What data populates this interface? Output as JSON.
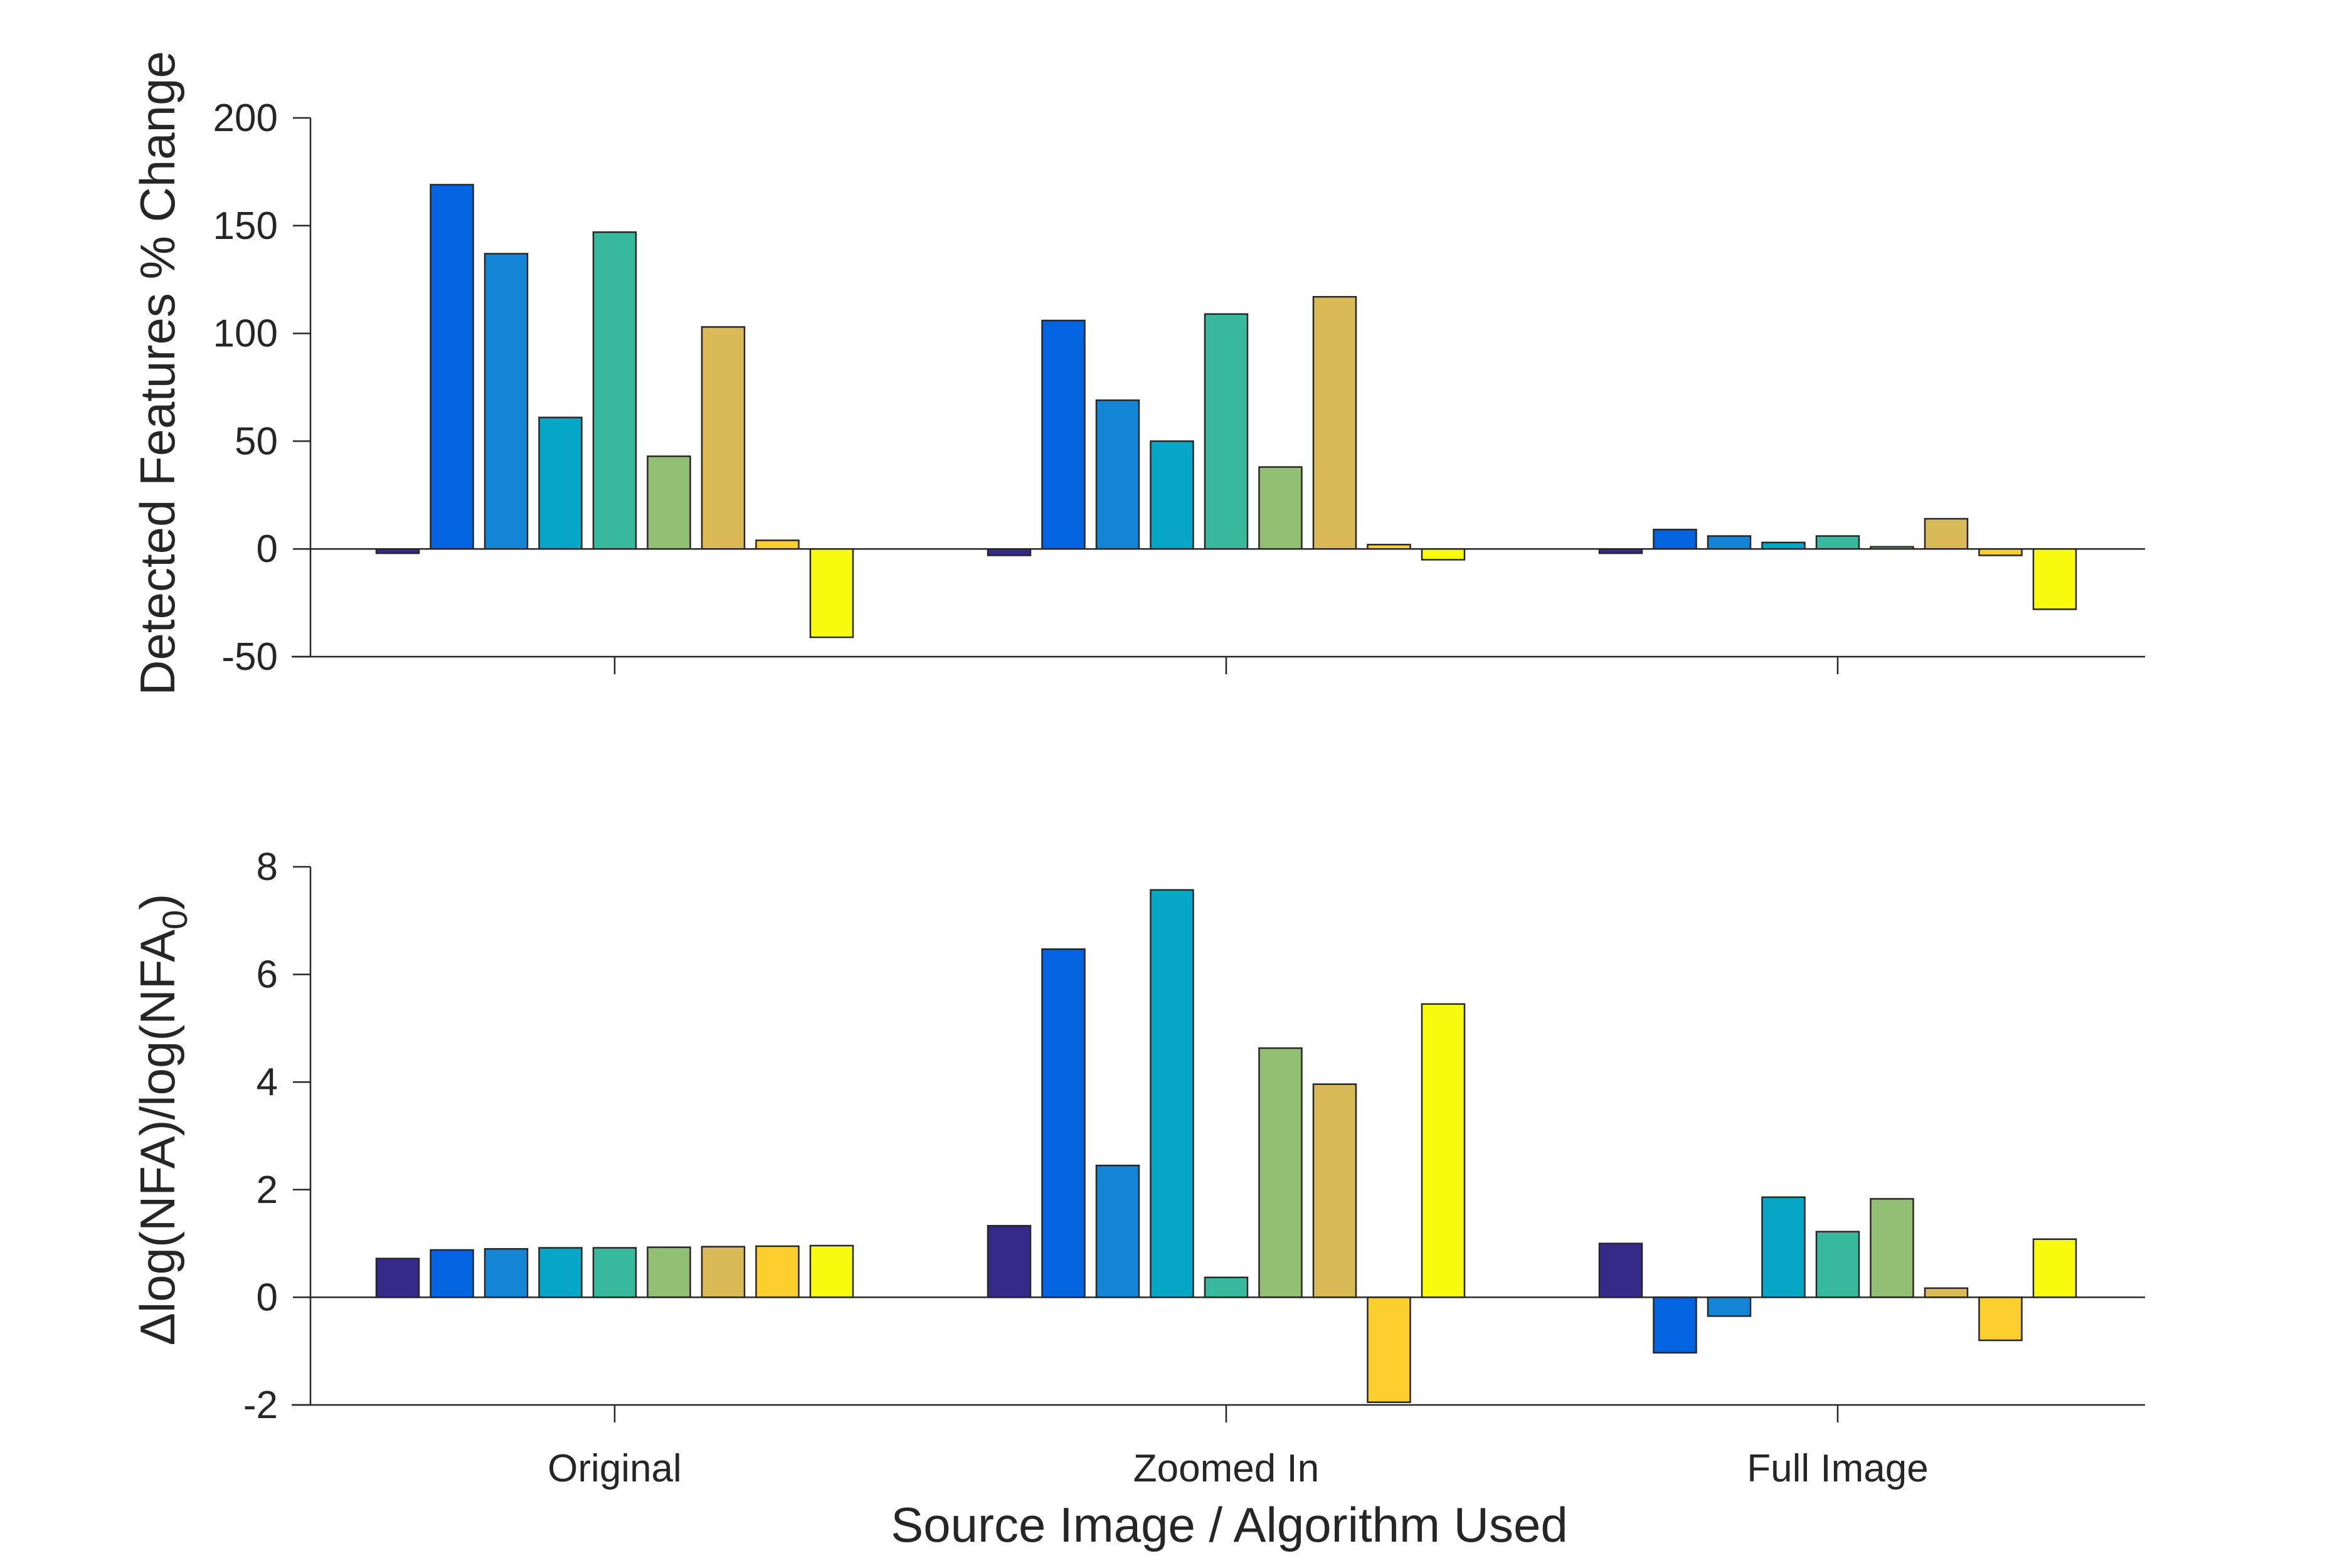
{
  "chart_data": [
    {
      "type": "bar",
      "title": "",
      "xlabel": "",
      "ylabel": "Detected Features % Change",
      "ylim": [
        -50,
        200
      ],
      "yticks": [
        -50,
        0,
        50,
        100,
        150,
        200
      ],
      "grid": false,
      "legend": "none",
      "categories": [
        "Original",
        "Zoomed In",
        "Full Image"
      ],
      "series": [
        {
          "color": "#352a87",
          "values": [
            -2,
            -3,
            -2
          ]
        },
        {
          "color": "#0363e1",
          "values": [
            169,
            106,
            9
          ]
        },
        {
          "color": "#1485d4",
          "values": [
            137,
            69,
            6
          ]
        },
        {
          "color": "#06a7c6",
          "values": [
            61,
            50,
            3
          ]
        },
        {
          "color": "#38b99e",
          "values": [
            147,
            109,
            6
          ]
        },
        {
          "color": "#92bf73",
          "values": [
            43,
            38,
            1
          ]
        },
        {
          "color": "#d9ba56",
          "values": [
            103,
            117,
            14
          ]
        },
        {
          "color": "#fcce2e",
          "values": [
            4,
            2,
            -3
          ]
        },
        {
          "color": "#f9fb0e",
          "values": [
            -41,
            -5,
            -28
          ]
        }
      ]
    },
    {
      "type": "bar",
      "title": "",
      "xlabel": "Source Image / Algorithm Used",
      "ylabel_main": "Δlog(NFA)/log(NFA",
      "ylabel_sub": "0",
      "ylabel_close": ")",
      "ylim": [
        -2,
        8
      ],
      "yticks": [
        -2,
        0,
        2,
        4,
        6,
        8
      ],
      "grid": false,
      "legend": "none",
      "categories": [
        "Original",
        "Zoomed In",
        "Full Image"
      ],
      "series": [
        {
          "color": "#352a87",
          "values": [
            0.72,
            1.33,
            1.0
          ]
        },
        {
          "color": "#0363e1",
          "values": [
            0.88,
            6.47,
            -1.03
          ]
        },
        {
          "color": "#1485d4",
          "values": [
            0.9,
            2.45,
            -0.35
          ]
        },
        {
          "color": "#06a7c6",
          "values": [
            0.92,
            7.57,
            1.86
          ]
        },
        {
          "color": "#38b99e",
          "values": [
            0.92,
            0.37,
            1.22
          ]
        },
        {
          "color": "#92bf73",
          "values": [
            0.93,
            4.63,
            1.83
          ]
        },
        {
          "color": "#d9ba56",
          "values": [
            0.94,
            3.96,
            0.17
          ]
        },
        {
          "color": "#fcce2e",
          "values": [
            0.95,
            -1.95,
            -0.8
          ]
        },
        {
          "color": "#f9fb0e",
          "values": [
            0.96,
            5.45,
            1.08
          ]
        }
      ]
    }
  ]
}
